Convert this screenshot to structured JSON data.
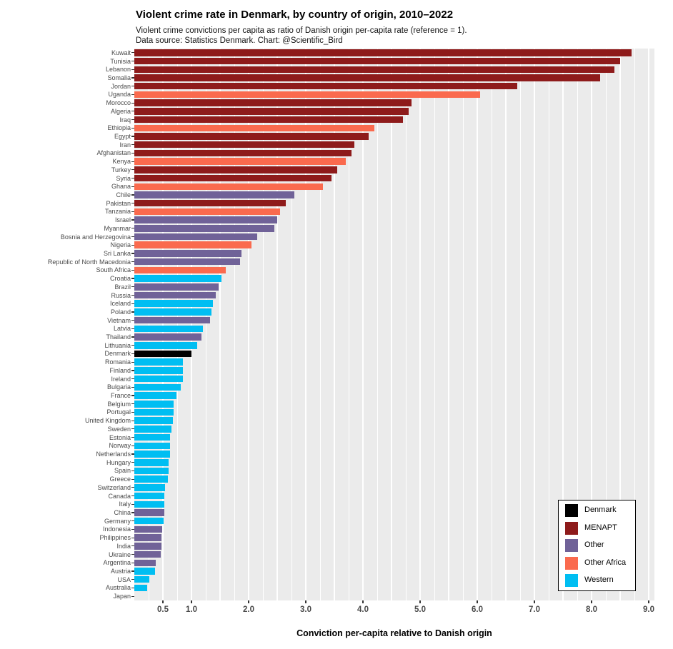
{
  "title": "Violent crime rate in Denmark, by country of origin, 2010–2022",
  "subtitle_line1": "Violent crime convictions per capita as ratio of Danish origin per-capita rate (reference = 1).",
  "subtitle_line2": "Data source: Statistics Denmark. Chart: @Scientific_Bird",
  "chart_data": {
    "type": "bar",
    "orientation": "horizontal",
    "title": "Violent crime rate in Denmark, by country of origin, 2010–2022",
    "xlabel": "Conviction per-capita relative to Danish origin",
    "ylabel": "",
    "xlim": [
      0,
      9.1
    ],
    "x_ticks": [
      0.5,
      1.0,
      2.0,
      3.0,
      4.0,
      5.0,
      6.0,
      7.0,
      8.0,
      9.0
    ],
    "x_tick_labels": [
      "0.5",
      "1.0",
      "2.0",
      "3.0",
      "4.0",
      "5.0",
      "6.0",
      "7.0",
      "8.0",
      "9.0"
    ],
    "grid": "white vertical gridlines every 0.25 on gray panel",
    "legend_position": "inside bottom-right",
    "colors": {
      "panel_background": "#EBEBEB",
      "gridline": "#FFFFFF",
      "axis_text": "#4A4A4A",
      "Denmark": "#000000",
      "MENAPT": "#8E1B1B",
      "Other": "#706298",
      "Other Africa": "#FA6A4E",
      "Western": "#00BEF2"
    },
    "legend_entries": [
      {
        "label": "Denmark",
        "color": "#000000"
      },
      {
        "label": "MENAPT",
        "color": "#8E1B1B"
      },
      {
        "label": "Other",
        "color": "#706298"
      },
      {
        "label": "Other Africa",
        "color": "#FA6A4E"
      },
      {
        "label": "Western",
        "color": "#00BEF2"
      }
    ],
    "rows": [
      {
        "country": "Kuwait",
        "value": 8.7,
        "group": "MENAPT"
      },
      {
        "country": "Tunisia",
        "value": 8.5,
        "group": "MENAPT"
      },
      {
        "country": "Lebanon",
        "value": 8.4,
        "group": "MENAPT"
      },
      {
        "country": "Somalia",
        "value": 8.15,
        "group": "MENAPT"
      },
      {
        "country": "Jordan",
        "value": 6.7,
        "group": "MENAPT"
      },
      {
        "country": "Uganda",
        "value": 6.05,
        "group": "Other Africa"
      },
      {
        "country": "Morocco",
        "value": 4.85,
        "group": "MENAPT"
      },
      {
        "country": "Algeria",
        "value": 4.8,
        "group": "MENAPT"
      },
      {
        "country": "Iraq",
        "value": 4.7,
        "group": "MENAPT"
      },
      {
        "country": "Ethiopia",
        "value": 4.2,
        "group": "Other Africa"
      },
      {
        "country": "Egypt",
        "value": 4.1,
        "group": "MENAPT"
      },
      {
        "country": "Iran",
        "value": 3.85,
        "group": "MENAPT"
      },
      {
        "country": "Afghanistan",
        "value": 3.8,
        "group": "MENAPT"
      },
      {
        "country": "Kenya",
        "value": 3.7,
        "group": "Other Africa"
      },
      {
        "country": "Turkey",
        "value": 3.55,
        "group": "MENAPT"
      },
      {
        "country": "Syria",
        "value": 3.45,
        "group": "MENAPT"
      },
      {
        "country": "Ghana",
        "value": 3.3,
        "group": "Other Africa"
      },
      {
        "country": "Chile",
        "value": 2.8,
        "group": "Other"
      },
      {
        "country": "Pakistan",
        "value": 2.65,
        "group": "MENAPT"
      },
      {
        "country": "Tanzania",
        "value": 2.55,
        "group": "Other Africa"
      },
      {
        "country": "Israel",
        "value": 2.5,
        "group": "Other"
      },
      {
        "country": "Myanmar",
        "value": 2.45,
        "group": "Other"
      },
      {
        "country": "Bosnia and Herzegovina",
        "value": 2.15,
        "group": "Other"
      },
      {
        "country": "Nigeria",
        "value": 2.05,
        "group": "Other Africa"
      },
      {
        "country": "Sri Lanka",
        "value": 1.87,
        "group": "Other"
      },
      {
        "country": "Republic of North Macedonia",
        "value": 1.85,
        "group": "Other"
      },
      {
        "country": "South Africa",
        "value": 1.6,
        "group": "Other Africa"
      },
      {
        "country": "Croatia",
        "value": 1.52,
        "group": "Western"
      },
      {
        "country": "Brazil",
        "value": 1.48,
        "group": "Other"
      },
      {
        "country": "Russia",
        "value": 1.42,
        "group": "Other"
      },
      {
        "country": "Iceland",
        "value": 1.37,
        "group": "Western"
      },
      {
        "country": "Poland",
        "value": 1.35,
        "group": "Western"
      },
      {
        "country": "Vietnam",
        "value": 1.32,
        "group": "Other"
      },
      {
        "country": "Latvia",
        "value": 1.2,
        "group": "Western"
      },
      {
        "country": "Thailand",
        "value": 1.18,
        "group": "Other"
      },
      {
        "country": "Lithuania",
        "value": 1.1,
        "group": "Western"
      },
      {
        "country": "Denmark",
        "value": 1.0,
        "group": "Denmark"
      },
      {
        "country": "Romania",
        "value": 0.85,
        "group": "Western"
      },
      {
        "country": "Finland",
        "value": 0.85,
        "group": "Western"
      },
      {
        "country": "Ireland",
        "value": 0.85,
        "group": "Western"
      },
      {
        "country": "Bulgaria",
        "value": 0.81,
        "group": "Western"
      },
      {
        "country": "France",
        "value": 0.74,
        "group": "Western"
      },
      {
        "country": "Belgium",
        "value": 0.69,
        "group": "Western"
      },
      {
        "country": "Portugal",
        "value": 0.69,
        "group": "Western"
      },
      {
        "country": "United Kingdom",
        "value": 0.68,
        "group": "Western"
      },
      {
        "country": "Sweden",
        "value": 0.65,
        "group": "Western"
      },
      {
        "country": "Estonia",
        "value": 0.63,
        "group": "Western"
      },
      {
        "country": "Norway",
        "value": 0.62,
        "group": "Western"
      },
      {
        "country": "Netherlands",
        "value": 0.62,
        "group": "Western"
      },
      {
        "country": "Hungary",
        "value": 0.6,
        "group": "Western"
      },
      {
        "country": "Spain",
        "value": 0.6,
        "group": "Western"
      },
      {
        "country": "Greece",
        "value": 0.59,
        "group": "Western"
      },
      {
        "country": "Switzerland",
        "value": 0.54,
        "group": "Western"
      },
      {
        "country": "Canada",
        "value": 0.53,
        "group": "Western"
      },
      {
        "country": "Italy",
        "value": 0.53,
        "group": "Western"
      },
      {
        "country": "China",
        "value": 0.53,
        "group": "Other"
      },
      {
        "country": "Germany",
        "value": 0.51,
        "group": "Western"
      },
      {
        "country": "Indonesia",
        "value": 0.49,
        "group": "Other"
      },
      {
        "country": "Philippines",
        "value": 0.48,
        "group": "Other"
      },
      {
        "country": "India",
        "value": 0.47,
        "group": "Other"
      },
      {
        "country": "Ukraine",
        "value": 0.46,
        "group": "Other"
      },
      {
        "country": "Argentina",
        "value": 0.38,
        "group": "Other"
      },
      {
        "country": "Austria",
        "value": 0.36,
        "group": "Western"
      },
      {
        "country": "USA",
        "value": 0.26,
        "group": "Western"
      },
      {
        "country": "Australia",
        "value": 0.23,
        "group": "Western"
      },
      {
        "country": "Japan",
        "value": 0.0,
        "group": "Western"
      }
    ]
  }
}
